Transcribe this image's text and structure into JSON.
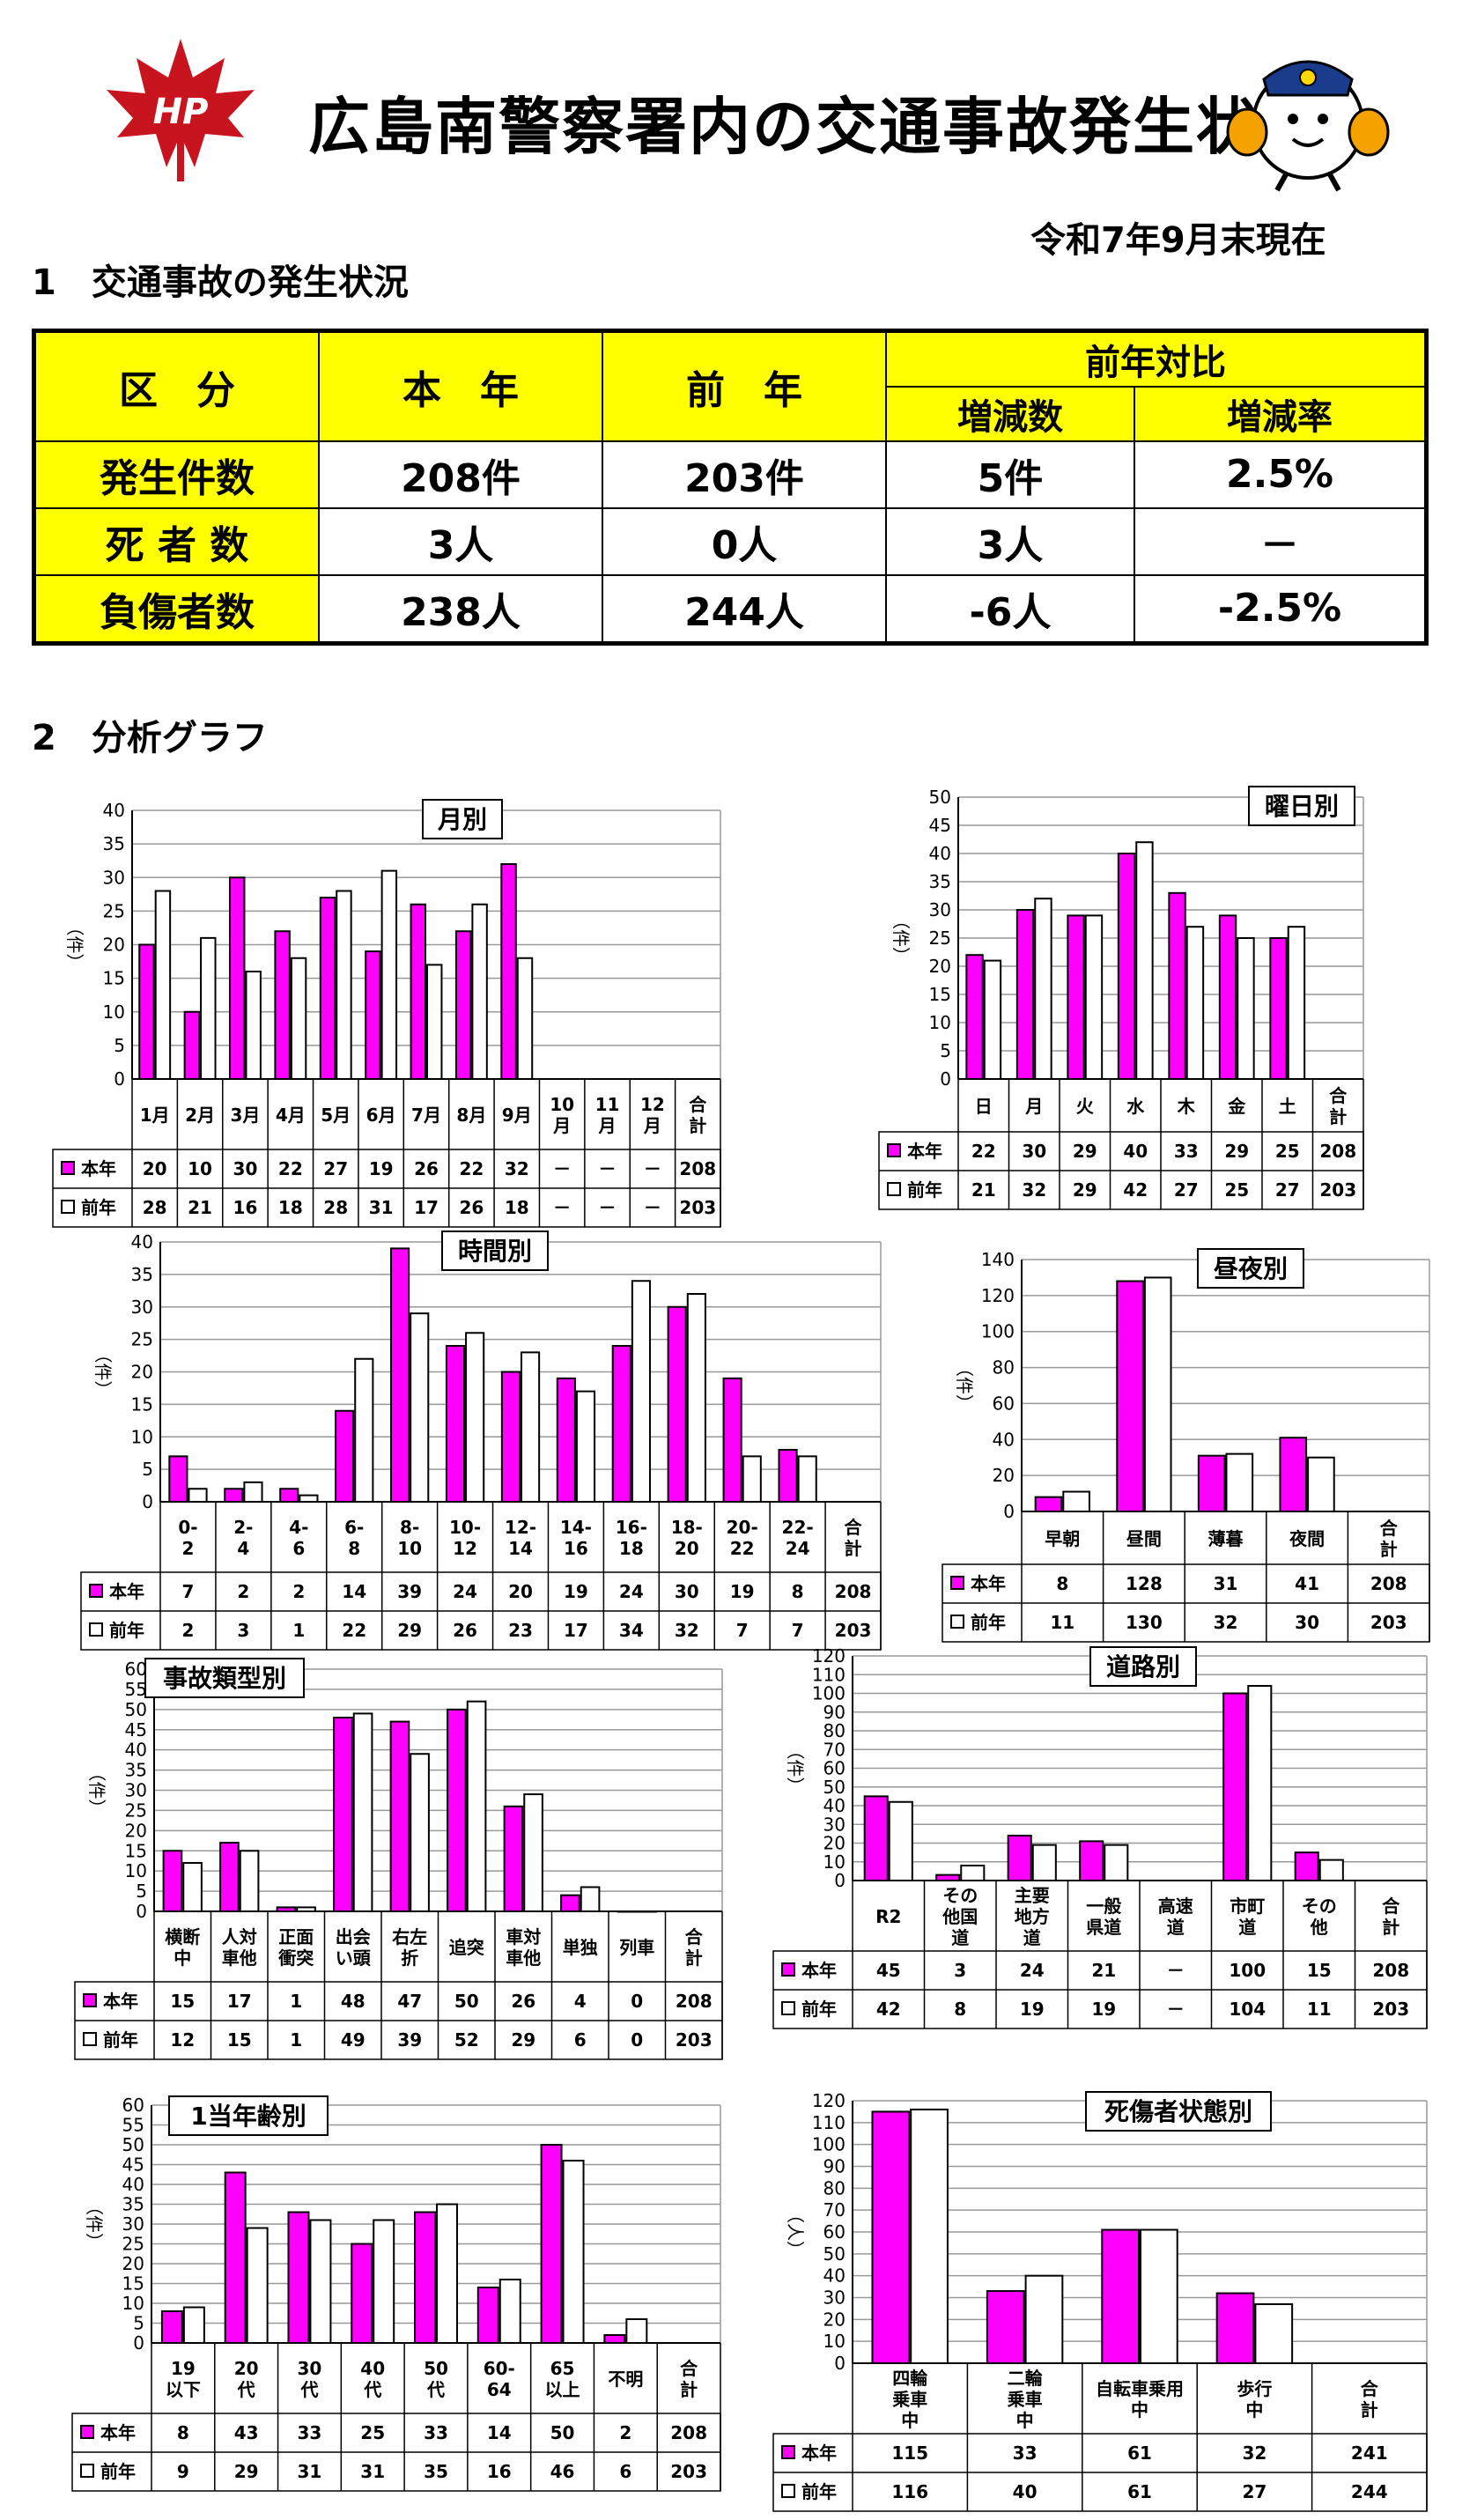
{
  "header": {
    "title": "広島南警察署内の交通事故発生状況",
    "logo_text": "HP",
    "as_of": "令和7年9月末現在"
  },
  "section1": {
    "heading": "1　交通事故の発生状況",
    "table": {
      "h_category": "区　分",
      "h_this_year": "本　年",
      "h_last_year": "前　年",
      "h_comparison": "前年対比",
      "h_diff": "増減数",
      "h_rate": "増減率",
      "rows": [
        {
          "label": "発生件数",
          "this": "208件",
          "last": "203件",
          "diff": "5件",
          "rate": "2.5%"
        },
        {
          "label": "死 者 数",
          "this": "3人",
          "last": "0人",
          "diff": "3人",
          "rate": "－"
        },
        {
          "label": "負傷者数",
          "this": "238人",
          "last": "244人",
          "diff": "-6人",
          "rate": "-2.5%"
        }
      ]
    }
  },
  "section2": {
    "heading": "2　分析グラフ"
  },
  "legend": {
    "this_year": "本年",
    "last_year": "前年"
  },
  "colors": {
    "this_year": "#ff00ff",
    "last_year": "#ffffff",
    "table_header": "#ffff00"
  },
  "chart_data": [
    {
      "id": "monthly",
      "type": "bar",
      "title": "月別",
      "ylabel": "件",
      "ylim": [
        0,
        40
      ],
      "yticks": [
        0,
        5,
        10,
        15,
        20,
        25,
        30,
        35,
        40
      ],
      "categories": [
        "1月",
        "2月",
        "3月",
        "4月",
        "5月",
        "6月",
        "7月",
        "8月",
        "9月",
        "10月",
        "11月",
        "12月",
        "合計"
      ],
      "series": [
        {
          "name": "本年",
          "values": [
            20,
            10,
            30,
            22,
            27,
            19,
            26,
            22,
            32,
            null,
            null,
            null,
            null
          ],
          "labels": [
            "20",
            "10",
            "30",
            "22",
            "27",
            "19",
            "26",
            "22",
            "32",
            "－",
            "－",
            "－",
            "208"
          ]
        },
        {
          "name": "前年",
          "values": [
            28,
            21,
            16,
            18,
            28,
            31,
            17,
            26,
            18,
            null,
            null,
            null,
            null
          ],
          "labels": [
            "28",
            "21",
            "16",
            "18",
            "28",
            "31",
            "17",
            "26",
            "18",
            "－",
            "－",
            "－",
            "203"
          ]
        }
      ]
    },
    {
      "id": "weekday",
      "type": "bar",
      "title": "曜日別",
      "ylabel": "件",
      "ylim": [
        0,
        50
      ],
      "yticks": [
        0,
        5,
        10,
        15,
        20,
        25,
        30,
        35,
        40,
        45,
        50
      ],
      "categories": [
        "日",
        "月",
        "火",
        "水",
        "木",
        "金",
        "土",
        "合計"
      ],
      "series": [
        {
          "name": "本年",
          "values": [
            22,
            30,
            29,
            40,
            33,
            29,
            25,
            null
          ],
          "labels": [
            "22",
            "30",
            "29",
            "40",
            "33",
            "29",
            "25",
            "208"
          ]
        },
        {
          "name": "前年",
          "values": [
            21,
            32,
            29,
            42,
            27,
            25,
            27,
            null
          ],
          "labels": [
            "21",
            "32",
            "29",
            "42",
            "27",
            "25",
            "27",
            "203"
          ]
        }
      ]
    },
    {
      "id": "hourly",
      "type": "bar",
      "title": "時間別",
      "ylabel": "件",
      "ylim": [
        0,
        40
      ],
      "yticks": [
        0,
        5,
        10,
        15,
        20,
        25,
        30,
        35,
        40
      ],
      "categories": [
        "0-2",
        "2-4",
        "4-6",
        "6-8",
        "8-10",
        "10-12",
        "12-14",
        "14-16",
        "16-18",
        "18-20",
        "20-22",
        "22-24",
        "合計"
      ],
      "series": [
        {
          "name": "本年",
          "values": [
            7,
            2,
            2,
            14,
            39,
            24,
            20,
            19,
            24,
            30,
            19,
            8,
            null
          ],
          "labels": [
            "7",
            "2",
            "2",
            "14",
            "39",
            "24",
            "20",
            "19",
            "24",
            "30",
            "19",
            "8",
            "208"
          ]
        },
        {
          "name": "前年",
          "values": [
            2,
            3,
            1,
            22,
            29,
            26,
            23,
            17,
            34,
            32,
            7,
            7,
            null
          ],
          "labels": [
            "2",
            "3",
            "1",
            "22",
            "29",
            "26",
            "23",
            "17",
            "34",
            "32",
            "7",
            "7",
            "203"
          ]
        }
      ]
    },
    {
      "id": "daynight",
      "type": "bar",
      "title": "昼夜別",
      "ylabel": "件",
      "ylim": [
        0,
        140
      ],
      "yticks": [
        0,
        20,
        40,
        60,
        80,
        100,
        120,
        140
      ],
      "categories": [
        "早朝",
        "昼間",
        "薄暮",
        "夜間",
        "合計"
      ],
      "series": [
        {
          "name": "本年",
          "values": [
            8,
            128,
            31,
            41,
            null
          ],
          "labels": [
            "8",
            "128",
            "31",
            "41",
            "208"
          ]
        },
        {
          "name": "前年",
          "values": [
            11,
            130,
            32,
            30,
            null
          ],
          "labels": [
            "11",
            "130",
            "32",
            "30",
            "203"
          ]
        }
      ]
    },
    {
      "id": "accident_type",
      "type": "bar",
      "title": "事故類型別",
      "ylabel": "件",
      "ylim": [
        0,
        60
      ],
      "yticks": [
        0,
        5,
        10,
        15,
        20,
        25,
        30,
        35,
        40,
        45,
        50,
        55,
        60
      ],
      "categories": [
        "横断中",
        "人対車他",
        "正面衝突",
        "出会い頭",
        "右左折",
        "追突",
        "車対車他",
        "単独",
        "列車",
        "合計"
      ],
      "series": [
        {
          "name": "本年",
          "values": [
            15,
            17,
            1,
            48,
            47,
            50,
            26,
            4,
            0,
            null
          ],
          "labels": [
            "15",
            "17",
            "1",
            "48",
            "47",
            "50",
            "26",
            "4",
            "0",
            "208"
          ]
        },
        {
          "name": "前年",
          "values": [
            12,
            15,
            1,
            49,
            39,
            52,
            29,
            6,
            0,
            null
          ],
          "labels": [
            "12",
            "15",
            "1",
            "49",
            "39",
            "52",
            "29",
            "6",
            "0",
            "203"
          ]
        }
      ]
    },
    {
      "id": "road",
      "type": "bar",
      "title": "道路別",
      "ylabel": "件",
      "ylim": [
        0,
        120
      ],
      "yticks": [
        0,
        10,
        20,
        30,
        40,
        50,
        60,
        70,
        80,
        90,
        100,
        110,
        120
      ],
      "categories": [
        "R2",
        "その他国道",
        "主要地方道",
        "一般県道",
        "高速道",
        "市町道",
        "その他",
        "合計"
      ],
      "series": [
        {
          "name": "本年",
          "values": [
            45,
            3,
            24,
            21,
            null,
            100,
            15,
            null
          ],
          "labels": [
            "45",
            "3",
            "24",
            "21",
            "－",
            "100",
            "15",
            "208"
          ]
        },
        {
          "name": "前年",
          "values": [
            42,
            8,
            19,
            19,
            null,
            104,
            11,
            null
          ],
          "labels": [
            "42",
            "8",
            "19",
            "19",
            "－",
            "104",
            "11",
            "203"
          ]
        }
      ]
    },
    {
      "id": "age",
      "type": "bar",
      "title": "1当年齢別",
      "ylabel": "件",
      "ylim": [
        0,
        60
      ],
      "yticks": [
        0,
        5,
        10,
        15,
        20,
        25,
        30,
        35,
        40,
        45,
        50,
        55,
        60
      ],
      "categories": [
        "19以下",
        "20代",
        "30代",
        "40代",
        "50代",
        "60-64",
        "65以上",
        "不明",
        "合計"
      ],
      "series": [
        {
          "name": "本年",
          "values": [
            8,
            43,
            33,
            25,
            33,
            14,
            50,
            2,
            null
          ],
          "labels": [
            "8",
            "43",
            "33",
            "25",
            "33",
            "14",
            "50",
            "2",
            "208"
          ]
        },
        {
          "name": "前年",
          "values": [
            9,
            29,
            31,
            31,
            35,
            16,
            46,
            6,
            null
          ],
          "labels": [
            "9",
            "29",
            "31",
            "31",
            "35",
            "16",
            "46",
            "6",
            "203"
          ]
        }
      ]
    },
    {
      "id": "casualty_state",
      "type": "bar",
      "title": "死傷者状態別",
      "ylabel": "人",
      "ylim": [
        0,
        120
      ],
      "yticks": [
        0,
        10,
        20,
        30,
        40,
        50,
        60,
        70,
        80,
        90,
        100,
        110,
        120
      ],
      "categories": [
        "四輪乗車中",
        "二輪乗車中",
        "自転車乗用中",
        "歩行中",
        "合計"
      ],
      "series": [
        {
          "name": "本年",
          "values": [
            115,
            33,
            61,
            32,
            null
          ],
          "labels": [
            "115",
            "33",
            "61",
            "32",
            "241"
          ]
        },
        {
          "name": "前年",
          "values": [
            116,
            40,
            61,
            27,
            null
          ],
          "labels": [
            "116",
            "40",
            "61",
            "27",
            "244"
          ]
        }
      ]
    }
  ]
}
